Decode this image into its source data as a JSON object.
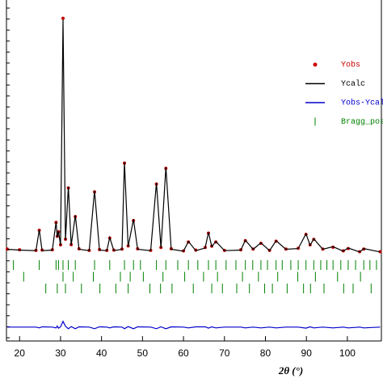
{
  "chart_data": {
    "type": "line",
    "x_label": "2θ (°)",
    "xlim": [
      16.8,
      108.3
    ],
    "xticks": [
      20,
      30,
      40,
      50,
      60,
      70,
      80,
      90,
      100
    ],
    "ylim": [
      -300,
      1000
    ],
    "x": [
      17,
      20,
      24,
      24.8,
      25.5,
      28,
      28.9,
      29.2,
      29.5,
      30,
      30.6,
      31.2,
      31.9,
      32.6,
      33.6,
      34.5,
      37,
      38.3,
      39.5,
      41.3,
      42,
      43,
      45,
      45.6,
      46.5,
      47.8,
      48.8,
      52,
      53.4,
      54.5,
      55.7,
      57,
      60,
      61.2,
      63,
      65.3,
      66.1,
      66.9,
      67.9,
      70,
      74,
      75.1,
      77,
      78.9,
      81,
      82.6,
      85,
      88,
      89.9,
      90.9,
      91.8,
      94,
      96.5,
      99,
      100.2,
      103,
      104,
      108
    ],
    "series": [
      {
        "name": "Yobs",
        "color": "#cc0000",
        "mode": "markers",
        "values": [
          46,
          43,
          41,
          118,
          42,
          43,
          148,
          95,
          112,
          62,
          930,
          84,
          280,
          63,
          170,
          47,
          41,
          265,
          44,
          41,
          88,
          42,
          46,
          375,
          58,
          155,
          47,
          41,
          295,
          52,
          355,
          47,
          39,
          73,
          42,
          52,
          107,
          57,
          73,
          41,
          43,
          78,
          46,
          68,
          41,
          76,
          46,
          49,
          102,
          62,
          83,
          46,
          53,
          39,
          48,
          36,
          46,
          36
        ]
      },
      {
        "name": "Ycalc",
        "color": "#000000",
        "mode": "line",
        "values": [
          45,
          42,
          40,
          120,
          40,
          42,
          150,
          90,
          115,
          60,
          925,
          80,
          285,
          60,
          175,
          45,
          40,
          270,
          42,
          40,
          90,
          40,
          45,
          380,
          55,
          160,
          45,
          40,
          300,
          50,
          360,
          45,
          38,
          75,
          40,
          50,
          110,
          55,
          75,
          40,
          42,
          80,
          45,
          70,
          40,
          78,
          45,
          48,
          105,
          60,
          85,
          45,
          55,
          38,
          50,
          35,
          48,
          35
        ]
      },
      {
        "name": "Yobs-Ycal",
        "color": "#0000cc",
        "mode": "line",
        "values": [
          -253,
          -253,
          -253,
          -256,
          -252,
          -253,
          -256,
          -249,
          -257,
          -252,
          -231,
          -250,
          -259,
          -251,
          -259,
          -252,
          -253,
          -259,
          -252,
          -253,
          -256,
          -252,
          -253,
          -259,
          -251,
          -259,
          -252,
          -253,
          -259,
          -252,
          -259,
          -252,
          -253,
          -256,
          -252,
          -252,
          -257,
          -252,
          -256,
          -253,
          -253,
          -256,
          -253,
          -256,
          -253,
          -256,
          -253,
          -253,
          -257,
          -252,
          -256,
          -253,
          -256,
          -253,
          -256,
          -253,
          -256,
          -253
        ]
      }
    ],
    "bragg": {
      "name": "Bragg_pos",
      "color": "#008000",
      "rows": [
        [
          18.5,
          24.8,
          28.9,
          29.5,
          30.6,
          31.9,
          33.6,
          38.3,
          42.0,
          45.6,
          47.8,
          49.5,
          53.4,
          55.7,
          58.6,
          61.2,
          63.5,
          66.1,
          67.9,
          70.4,
          72.8,
          75.1,
          76.9,
          78.9,
          80.5,
          82.6,
          84.1,
          86.2,
          88.0,
          89.9,
          91.8,
          93.5,
          95.0,
          96.5,
          98.4,
          100.2,
          102.0,
          104.0,
          105.5,
          107.1
        ],
        [
          21.0,
          30.6,
          33.1,
          38.0,
          44.6,
          47.0,
          50.2,
          55.0,
          60.3,
          64.9,
          68.3,
          74.4,
          78.3,
          83.0,
          87.9,
          92.2,
          97.6,
          103.2
        ],
        [
          26.4,
          29.2,
          31.2,
          35.1,
          39.6,
          43.5,
          46.5,
          51.8,
          54.4,
          57.2,
          62.4,
          66.9,
          69.5,
          73.0,
          76.1,
          79.8,
          81.7,
          85.3,
          89.3,
          91.0,
          94.3,
          99.1,
          101.4,
          105.8
        ]
      ]
    }
  }
}
